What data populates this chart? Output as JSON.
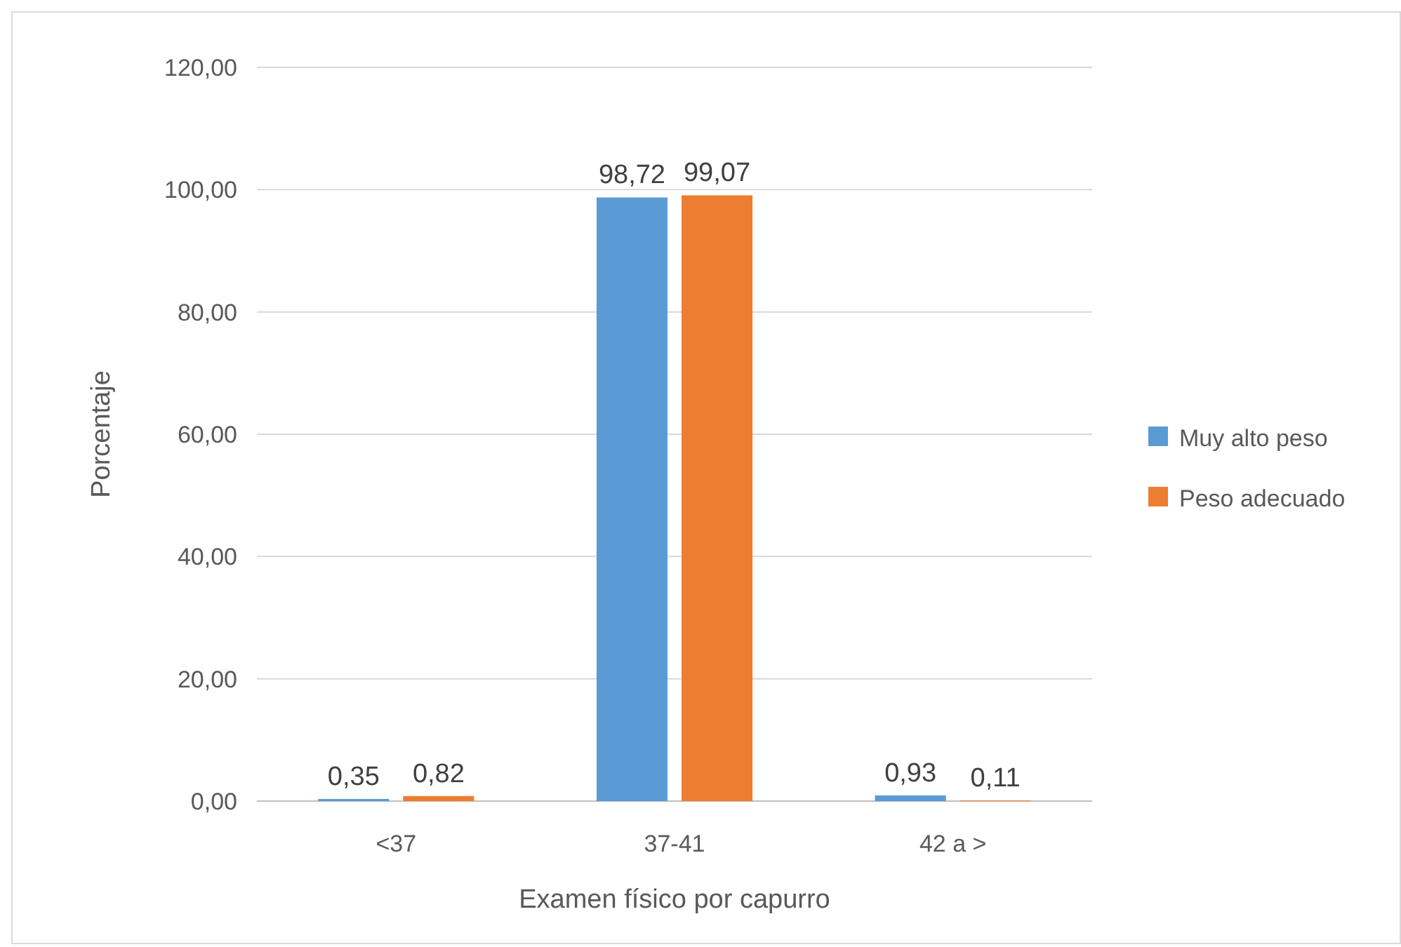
{
  "chart_data": {
    "type": "bar",
    "xlabel": "Examen físico por capurro",
    "ylabel": "Porcentaje",
    "categories": [
      "<37",
      "37-41",
      "42 a >"
    ],
    "series": [
      {
        "name": "Muy alto peso",
        "color": "#5b9bd5",
        "values": [
          0.35,
          98.72,
          0.93
        ],
        "value_labels": [
          "0,35",
          "98,72",
          "0,93"
        ]
      },
      {
        "name": "Peso adecuado",
        "color": "#ed7d31",
        "values": [
          0.82,
          99.07,
          0.11
        ],
        "value_labels": [
          "0,82",
          "99,07",
          "0,11"
        ]
      }
    ],
    "ylim": [
      0,
      120
    ],
    "yticks": [
      {
        "value": 0,
        "label": "0,00"
      },
      {
        "value": 20,
        "label": "20,00"
      },
      {
        "value": 40,
        "label": "40,00"
      },
      {
        "value": 60,
        "label": "60,00"
      },
      {
        "value": 80,
        "label": "80,00"
      },
      {
        "value": 100,
        "label": "100,00"
      },
      {
        "value": 120,
        "label": "120,00"
      }
    ],
    "grid": "y",
    "legend": "right"
  }
}
